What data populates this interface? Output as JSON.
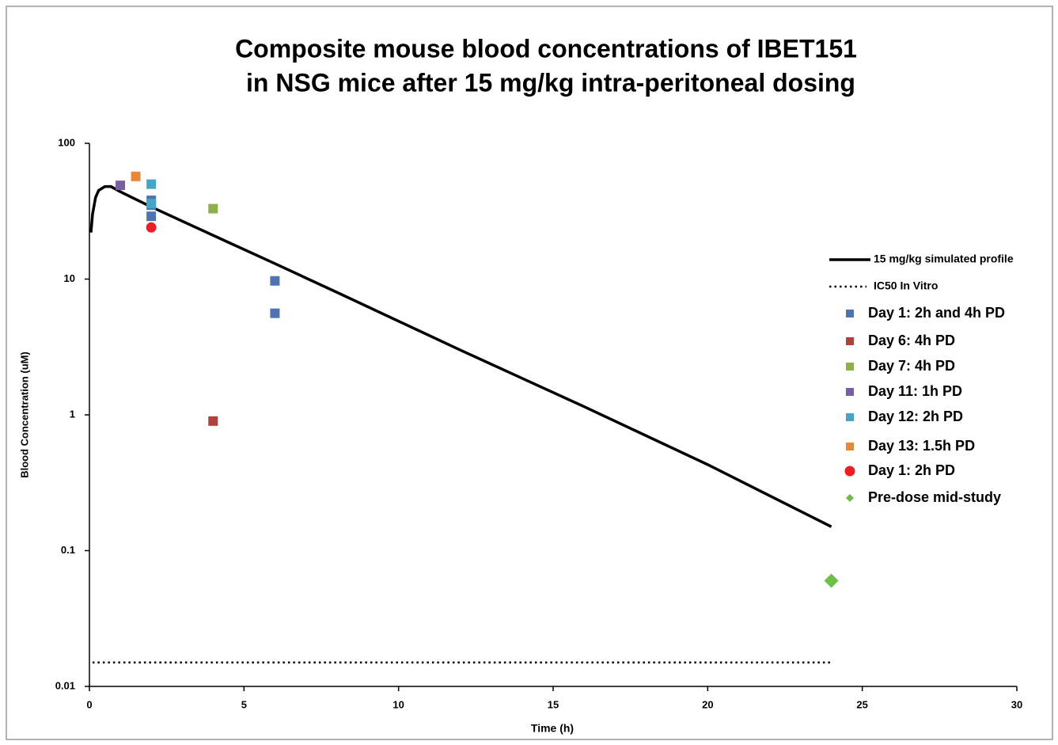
{
  "chart_data": {
    "type": "scatter",
    "title": [
      "Composite mouse blood concentrations of IBET151",
      "in NSG mice after 15 mg/kg intra-peritoneal dosing"
    ],
    "x_label": "Time (h)",
    "y_label": "Blood Concentration (uM)",
    "xlim": [
      0,
      30
    ],
    "xticks": [
      0,
      5,
      10,
      15,
      20,
      25,
      30
    ],
    "ylim": [
      0.01,
      100
    ],
    "yticks": [
      0.01,
      0.1,
      1,
      10,
      100
    ],
    "y_scale": "log",
    "legend": "right",
    "series": [
      {
        "name": "15 mg/kg simulated profile",
        "color": "#000000",
        "marker": "line",
        "x": [
          0.05,
          0.1,
          0.2,
          0.3,
          0.5,
          0.7,
          1,
          2,
          4,
          6,
          8,
          12,
          16,
          20,
          24
        ],
        "values": [
          22,
          30,
          40,
          45,
          48,
          48,
          44,
          34,
          21,
          13,
          8,
          3,
          1.15,
          0.43,
          0.15
        ]
      },
      {
        "name": "IC50 In Vitro",
        "color": "#000000",
        "marker": "dotted",
        "x": [
          0.1,
          24
        ],
        "values": [
          0.015,
          0.015
        ]
      },
      {
        "name": "Day 1: 2h and 4h PD",
        "color": "#4f72b3",
        "marker": "square",
        "x": [
          2,
          2,
          2,
          6,
          6
        ],
        "values": [
          38,
          35,
          29,
          9.7,
          5.6
        ]
      },
      {
        "name": "Day 6:  4h PD",
        "color": "#b0413e",
        "marker": "square",
        "x": [
          4
        ],
        "values": [
          0.9
        ]
      },
      {
        "name": "Day 7:  4h PD",
        "color": "#8db04a",
        "marker": "square",
        "x": [
          4
        ],
        "values": [
          33
        ]
      },
      {
        "name": "Day 11:  1h PD",
        "color": "#7a5ea3",
        "marker": "square",
        "x": [
          1
        ],
        "values": [
          49
        ]
      },
      {
        "name": "Day 12: 2h PD",
        "color": "#46a5c4",
        "marker": "square",
        "x": [
          2,
          2
        ],
        "values": [
          50,
          36
        ]
      },
      {
        "name": "Day 13: 1.5h PD",
        "color": "#e8883a",
        "marker": "square",
        "x": [
          1.5
        ],
        "values": [
          57
        ]
      },
      {
        "name": "Day 1: 2h PD",
        "color": "#ee1c25",
        "marker": "circle",
        "x": [
          2
        ],
        "values": [
          24
        ]
      },
      {
        "name": "Pre-dose mid-study",
        "color": "#6cc04a",
        "marker": "diamond",
        "x": [
          24
        ],
        "values": [
          0.06
        ]
      }
    ]
  }
}
